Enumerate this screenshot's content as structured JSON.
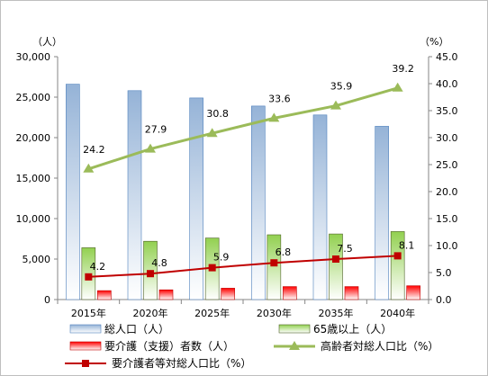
{
  "chart_data": {
    "type": "bar",
    "categories": [
      "2015年",
      "2020年",
      "2025年",
      "2030年",
      "2035年",
      "2040年"
    ],
    "y_left": {
      "unit_label": "（人）",
      "ylim": [
        0,
        30000
      ],
      "ticks": [
        "0",
        "5,000",
        "10,000",
        "15,000",
        "20,000",
        "25,000",
        "30,000"
      ]
    },
    "y_right": {
      "unit_label": "（%）",
      "ylim": [
        0,
        45
      ],
      "ticks": [
        "0.0",
        "5.0",
        "10.0",
        "15.0",
        "20.0",
        "25.0",
        "30.0",
        "35.0",
        "40.0",
        "45.0"
      ]
    },
    "series": [
      {
        "name": "総人口（人）",
        "kind": "bar",
        "axis": "left",
        "color": "#95b3d7",
        "values": [
          26600,
          25800,
          24900,
          23900,
          22800,
          21400
        ]
      },
      {
        "name": "65歳以上（人）",
        "kind": "bar",
        "axis": "left",
        "color": "#92d050",
        "values": [
          6400,
          7200,
          7600,
          8000,
          8100,
          8400
        ]
      },
      {
        "name": "要介護（支援）者数（人）",
        "kind": "bar",
        "axis": "left",
        "color": "#ff0000",
        "values": [
          1100,
          1200,
          1400,
          1600,
          1600,
          1700
        ]
      },
      {
        "name": "高齢者対総人口比（%）",
        "kind": "line",
        "axis": "right",
        "color": "#9bbb59",
        "marker": "triangle",
        "values": [
          24.2,
          27.9,
          30.8,
          33.6,
          35.9,
          39.2
        ],
        "labels": [
          "24.2",
          "27.9",
          "30.8",
          "33.6",
          "35.9",
          "39.2"
        ]
      },
      {
        "name": "要介護者等対総人口比（%）",
        "kind": "line",
        "axis": "right",
        "color": "#c00000",
        "marker": "square",
        "values": [
          4.2,
          4.8,
          5.9,
          6.8,
          7.5,
          8.1
        ],
        "labels": [
          "4.2",
          "4.8",
          "5.9",
          "6.8",
          "7.5",
          "8.1"
        ]
      }
    ],
    "grid": false,
    "legend_position": "bottom"
  }
}
